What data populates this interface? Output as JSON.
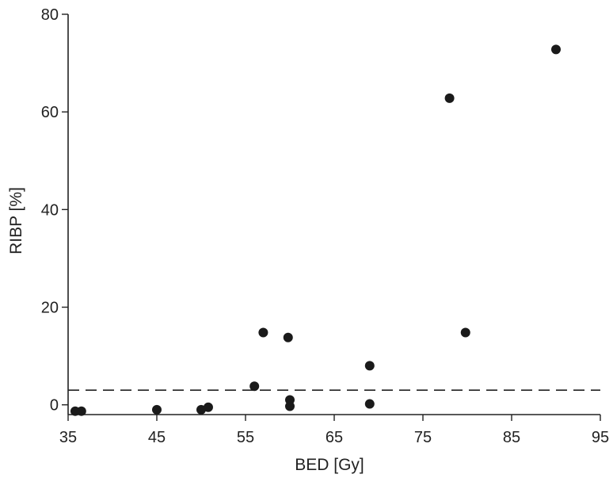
{
  "chart_data": {
    "type": "scatter",
    "title": "",
    "xlabel": "BED [Gy]",
    "ylabel": "RIBP [%]",
    "xlim": [
      35,
      95
    ],
    "ylim": [
      -2,
      80
    ],
    "x_ticks": [
      35,
      45,
      55,
      65,
      75,
      85,
      95
    ],
    "x_tick_labels": [
      "35",
      "45",
      "55",
      "65",
      "75",
      "85",
      "95"
    ],
    "y_ticks": [
      0,
      20,
      40,
      60,
      80
    ],
    "y_tick_labels": [
      "0",
      "20",
      "40",
      "60",
      "80"
    ],
    "grid": false,
    "reference_line": {
      "y": 3,
      "style": "dashed"
    },
    "point_color": "#1a1a1a",
    "points": [
      {
        "x": 35.8,
        "y": -1.3
      },
      {
        "x": 36.5,
        "y": -1.3
      },
      {
        "x": 45.0,
        "y": -1.0
      },
      {
        "x": 50.0,
        "y": -1.0
      },
      {
        "x": 50.8,
        "y": -0.5
      },
      {
        "x": 56.0,
        "y": 3.8
      },
      {
        "x": 57.0,
        "y": 14.8
      },
      {
        "x": 59.8,
        "y": 13.8
      },
      {
        "x": 60.0,
        "y": 1.0
      },
      {
        "x": 60.0,
        "y": -0.3
      },
      {
        "x": 69.0,
        "y": 8.0
      },
      {
        "x": 69.0,
        "y": 0.2
      },
      {
        "x": 78.0,
        "y": 62.8
      },
      {
        "x": 79.8,
        "y": 14.8
      },
      {
        "x": 90.0,
        "y": 72.8
      }
    ]
  }
}
